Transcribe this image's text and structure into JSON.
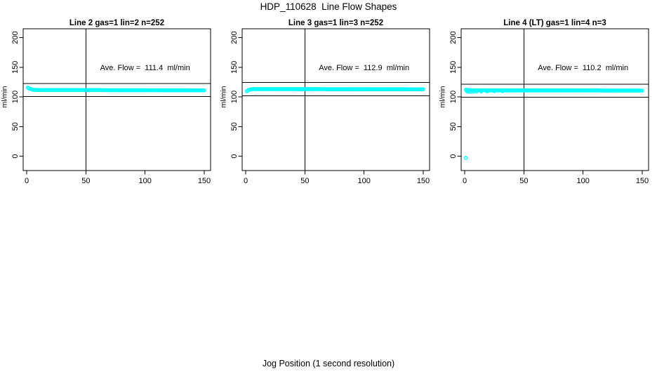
{
  "page": {
    "title": "HDP_110628  Line Flow Shapes",
    "x_axis_shared_label": "Jog Position (1 second resolution)",
    "background_color": "#ffffff",
    "axis_color": "#000000"
  },
  "chart_data": [
    {
      "type": "scatter",
      "title": "Line 2 gas=1 lin=2 n=252",
      "annotation": "Ave. Flow =  111.4  ml/min",
      "annotation_at": {
        "x": 100,
        "y": 150
      },
      "ave_flow_ml_min": 111.4,
      "n": 252,
      "ylabel": "ml/min",
      "x_ticks": [
        0,
        50,
        100,
        150
      ],
      "y_ticks": [
        0,
        50,
        100,
        150,
        200
      ],
      "xlim": [
        -3,
        158
      ],
      "ylim": [
        -29,
        215
      ],
      "grid": false,
      "vline_x": 50,
      "hlines": [
        122.5,
        100.3
      ],
      "point_color": "#00FFFF",
      "point_style": "open-circle",
      "x_range": [
        1,
        150
      ],
      "points_profile": [
        [
          1,
          115.5
        ],
        [
          2,
          114.5
        ],
        [
          3,
          113.5
        ],
        [
          4,
          112.8
        ],
        [
          5,
          112.3
        ],
        [
          7,
          111.8
        ],
        [
          10,
          111.5
        ],
        [
          20,
          111.4
        ],
        [
          50,
          111.4
        ],
        [
          100,
          111.2
        ],
        [
          150,
          111.0
        ]
      ],
      "extra_points": [],
      "outliers": []
    },
    {
      "type": "scatter",
      "title": "Line 3 gas=1 lin=3 n=252",
      "annotation": "Ave. Flow =  112.9  ml/min",
      "annotation_at": {
        "x": 100,
        "y": 150
      },
      "ave_flow_ml_min": 112.9,
      "n": 252,
      "ylabel": "ml/min",
      "x_ticks": [
        0,
        50,
        100,
        150
      ],
      "y_ticks": [
        0,
        50,
        100,
        150,
        200
      ],
      "xlim": [
        -3,
        158
      ],
      "ylim": [
        -29,
        215
      ],
      "grid": false,
      "vline_x": 50,
      "hlines": [
        124.2,
        101.6
      ],
      "point_color": "#00FFFF",
      "point_style": "open-circle",
      "x_range": [
        1,
        150
      ],
      "points_profile": [
        [
          1,
          109.5
        ],
        [
          2,
          110.8
        ],
        [
          3,
          112.0
        ],
        [
          4,
          112.6
        ],
        [
          6,
          113.0
        ],
        [
          10,
          113.1
        ],
        [
          50,
          113.0
        ],
        [
          100,
          112.9
        ],
        [
          150,
          112.8
        ]
      ],
      "extra_points": [],
      "outliers": []
    },
    {
      "type": "scatter",
      "title": "Line 4 (LT) gas=1 lin=4 n=3",
      "annotation": "Ave. Flow =  110.2  ml/min",
      "annotation_at": {
        "x": 100,
        "y": 150
      },
      "ave_flow_ml_min": 110.2,
      "n": 3,
      "ylabel": "ml/min",
      "x_ticks": [
        0,
        50,
        100,
        150
      ],
      "y_ticks": [
        0,
        50,
        100,
        150,
        200
      ],
      "xlim": [
        -3,
        158
      ],
      "ylim": [
        -29,
        215
      ],
      "grid": false,
      "vline_x": 50,
      "hlines": [
        121.2,
        99.2
      ],
      "point_color": "#00FFFF",
      "point_style": "open-circle",
      "x_range": [
        1,
        150
      ],
      "points_profile": [
        [
          1,
          112.0
        ],
        [
          2,
          111.5
        ],
        [
          4,
          111.2
        ],
        [
          8,
          111.0
        ],
        [
          15,
          110.9
        ],
        [
          50,
          110.8
        ],
        [
          100,
          110.8
        ],
        [
          150,
          110.6
        ]
      ],
      "extra_points": [
        [
          2,
          109.5
        ],
        [
          3,
          108.8
        ],
        [
          5,
          108.5
        ],
        [
          7,
          108.7
        ],
        [
          10,
          109.0
        ],
        [
          14,
          109.2
        ],
        [
          19,
          109.4
        ],
        [
          25,
          109.6
        ],
        [
          32,
          109.8
        ]
      ],
      "outliers": [
        [
          1,
          -3
        ]
      ]
    }
  ]
}
